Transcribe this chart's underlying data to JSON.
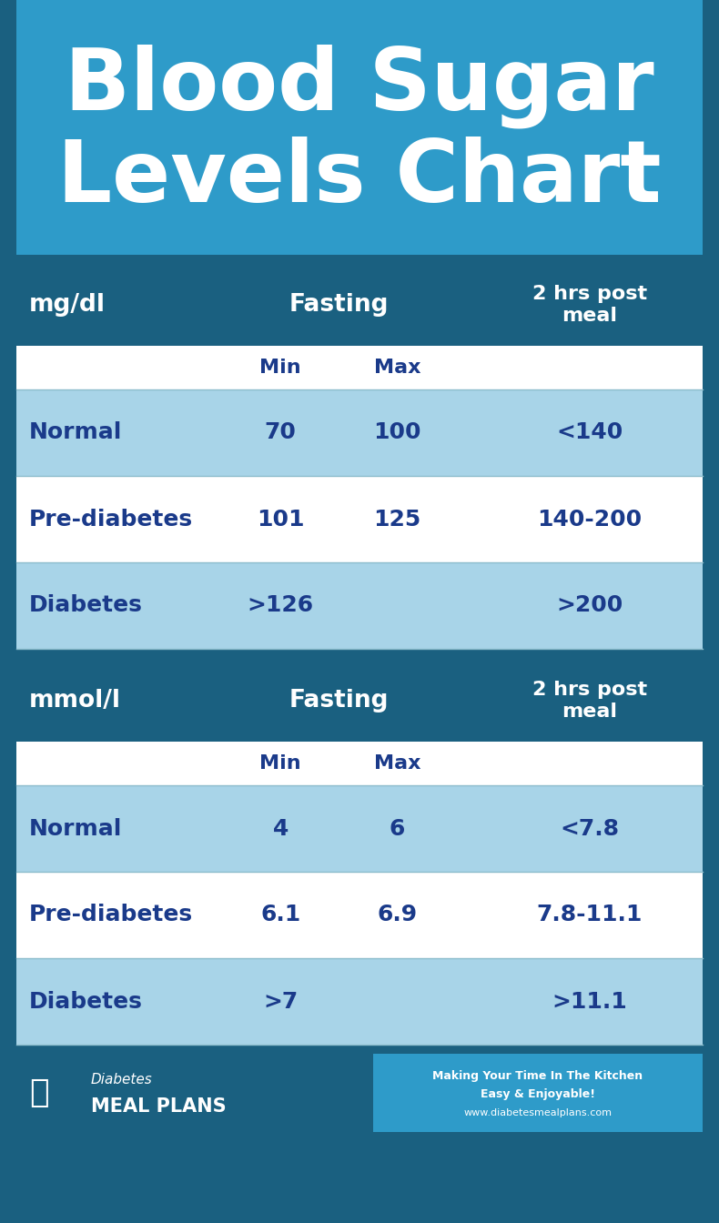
{
  "title_line1": "Blood Sugar",
  "title_line2": "Levels Chart",
  "title_bg": "#2e9bc9",
  "outer_bg": "#1a6080",
  "table_header_bg": "#1a6080",
  "table_row_light": "#a8d4e8",
  "table_row_white": "#ffffff",
  "table_text_color": "#1a3a8a",
  "header_text_color": "#ffffff",
  "title_text_color": "#ffffff",
  "mgdl_rows": [
    [
      "Normal",
      "70",
      "100",
      "<140"
    ],
    [
      "Pre-diabetes",
      "101",
      "125",
      "140-200"
    ],
    [
      "Diabetes",
      ">126",
      "",
      ">200"
    ]
  ],
  "mmoll_rows": [
    [
      "Normal",
      "4",
      "6",
      "<7.8"
    ],
    [
      "Pre-diabetes",
      "6.1",
      "6.9",
      "7.8-11.1"
    ],
    [
      "Diabetes",
      ">7",
      "",
      ">11.1"
    ]
  ],
  "mgdl_unit": "mg/dl",
  "mmoll_unit": "mmol/l",
  "fasting_label": "Fasting",
  "post_meal_label": "2 hrs post\nmeal",
  "min_label": "Min",
  "max_label": "Max",
  "footer_left_bg": "#1a6080",
  "footer_right_bg": "#2e9bc9",
  "footer_brand_italic": "Diabetes",
  "footer_brand_bold": "MEAL PLANS",
  "footer_right_line1": "Making Your Time In The Kitchen",
  "footer_right_line2": "Easy & Enjoyable!",
  "footer_right_line3": "www.diabetesmealplans.com"
}
